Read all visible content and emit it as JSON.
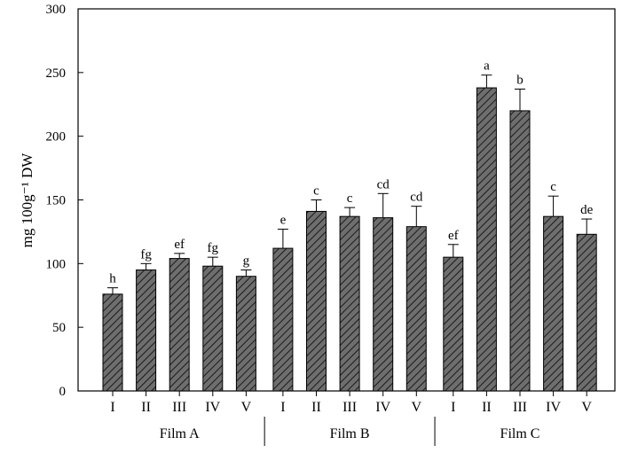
{
  "chart_data": {
    "type": "bar",
    "title": "",
    "xlabel": "",
    "ylabel": "mg 100g⁻¹ DW",
    "ylim": [
      0,
      300
    ],
    "yticks": [
      0,
      50,
      100,
      150,
      200,
      250,
      300
    ],
    "grid": false,
    "legend": "none",
    "bar_color": "#6e6e6e",
    "hatch": "diagonal",
    "groups": [
      {
        "name": "Film A",
        "categories": [
          "I",
          "II",
          "III",
          "IV",
          "V"
        ],
        "values": [
          76,
          95,
          104,
          98,
          90
        ],
        "errors": [
          5,
          5,
          4,
          7,
          5
        ],
        "letters": [
          "h",
          "fg",
          "ef",
          "fg",
          "g"
        ]
      },
      {
        "name": "Film B",
        "categories": [
          "I",
          "II",
          "III",
          "IV",
          "V"
        ],
        "values": [
          112,
          141,
          137,
          136,
          129
        ],
        "errors": [
          15,
          9,
          7,
          19,
          16
        ],
        "letters": [
          "e",
          "c",
          "c",
          "cd",
          "cd"
        ]
      },
      {
        "name": "Film C",
        "categories": [
          "I",
          "II",
          "III",
          "IV",
          "V"
        ],
        "values": [
          105,
          238,
          220,
          137,
          123
        ],
        "errors": [
          10,
          10,
          17,
          16,
          12
        ],
        "letters": [
          "ef",
          "a",
          "b",
          "c",
          "de"
        ]
      }
    ]
  }
}
